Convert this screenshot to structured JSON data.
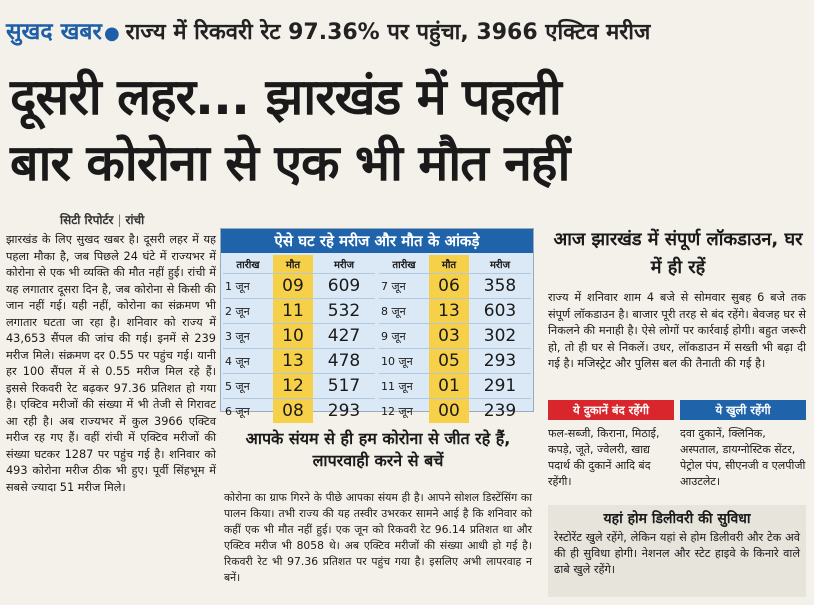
{
  "strap": {
    "tag": "सुखद खबर",
    "subtitle": "राज्य में रिकवरी रेट 97.36% पर पहुंचा, 3966 एक्टिव मरीज"
  },
  "headline": {
    "line1": "दूसरी लहर... झारखंड में पहली",
    "line2": "बार कोरोना से एक भी मौत नहीं"
  },
  "byline": {
    "reporter": "सिटी रिपोर्टर",
    "city": "रांची"
  },
  "left_article": "झारखंड के लिए सुखद खबर है। दूसरी लहर में यह पहला मौका है, जब पिछले 24 घंटे में राज्यभर में कोरोना से एक भी व्यक्ति की मौत नहीं हुई। रांची में यह लगातार दूसरा दिन है, जब कोरोना से किसी की जान नहीं गई। यही नहीं, कोरोना का संक्रमण भी लगातार घटता जा रहा है। शनिवार को राज्य में 43,653 सैंपल की जांच की गई। इनमें से 239 मरीज मिले। संक्रमण दर 0.55 पर पहुंच गई। यानी हर 100 सैंपल में से 0.55 मरीज मिल रहे हैं। इससे रिकवरी रेट बढ़कर 97.36 प्रतिशत हो गया है। एक्टिव मरीजों की संख्या में भी तेजी से गिरावट आ रही है। अब राज्यभर में कुल 3966 एक्टिव मरीज रह गए हैं। वहीं रांची में एक्टिव मरीजों की संख्या घटकर 1287 पर पहुंच गई है। शनिवार को 493 कोरोना मरीज ठीक भी हुए। पूर्वी सिंहभूम में सबसे ज्यादा 51 मरीज मिले।",
  "stats_table": {
    "title": "ऐसे घट रहे मरीज और मौत के आंकड़े",
    "headers": [
      "तारीख",
      "मौत",
      "मरीज"
    ],
    "left_rows": [
      {
        "date": "1 जून",
        "deaths": "09",
        "patients": "609"
      },
      {
        "date": "2 जून",
        "deaths": "11",
        "patients": "532"
      },
      {
        "date": "3 जून",
        "deaths": "10",
        "patients": "427"
      },
      {
        "date": "4 जून",
        "deaths": "13",
        "patients": "478"
      },
      {
        "date": "5 जून",
        "deaths": "12",
        "patients": "517"
      },
      {
        "date": "6 जून",
        "deaths": "08",
        "patients": "293"
      }
    ],
    "right_rows": [
      {
        "date": "7 जून",
        "deaths": "06",
        "patients": "358"
      },
      {
        "date": "8 जून",
        "deaths": "13",
        "patients": "603"
      },
      {
        "date": "9 जून",
        "deaths": "03",
        "patients": "302"
      },
      {
        "date": "10 जून",
        "deaths": "05",
        "patients": "293"
      },
      {
        "date": "11 जून",
        "deaths": "01",
        "patients": "291"
      },
      {
        "date": "12 जून",
        "deaths": "00",
        "patients": "239"
      }
    ]
  },
  "middle_article": {
    "heading": "आपके संयम से ही हम कोरोना से जीत रहे हैं, लापरवाही करने से बचें",
    "body": "कोरोना का ग्राफ गिरने के पीछे आपका संयम ही है। आपने सोशल डिस्टेंसिंग का पालन किया। तभी राज्य की यह तस्वीर उभरकर सामने आई है कि शनिवार को कहीं एक भी मौत नहीं हुई। एक जून को रिकवरी रेट 96.14 प्रतिशत था और एक्टिव मरीज भी 8058 थे। अब एक्टिव मरीजों की संख्या आधी हो गई है। रिकवरी रेट भी 97.36 प्रतिशत पर पहुंच गया है। इसलिए अभी लापरवाह न बनें।"
  },
  "right_article": {
    "heading": "आज झारखंड में संपूर्ण लॉकडाउन, घर में ही रहें",
    "body": "राज्य में शनिवार शाम 4 बजे से सोमवार सुबह 6 बजे तक संपूर्ण लॉकडाउन है। बाजार पूरी तरह से बंद रहेंगे। बेवजह घर से निकलने की मनाही है। ऐसे लोगों पर कार्रवाई होगी। बहुत जरूरी हो, तो ही घर से निकलें। उधर, लॉकडाउन में सख्ती भी बढ़ा दी गई है। मजिस्ट्रेट और पुलिस बल की तैनाती की गई है।",
    "closed_header": "ये दुकानें बंद रहेंगी",
    "closed_text": "फल-सब्जी, किराना, मिठाई, कपड़े, जूते, ज्वेलरी, खाद्य पदार्थ की दुकानें आदि बंद रहेंगी।",
    "open_header": "ये खुली रहेंगी",
    "open_text": "दवा दुकानें, क्लिनिक, अस्पताल, डायग्नोस्टिक सेंटर, पेट्रोल पंप, सीएनजी व एलपीजी आउटलेट।",
    "delivery_header": "यहां होम डिलीवरी की सुविधा",
    "delivery_text": "रेस्टोरेंट खुले रहेंगे, लेकिन यहां से होम डिलीवरी और टेक अवे की ही सुविधा होगी। नेशनल और स्टेट हाइवे के किनारे वाले ढाबे खुले रहेंगे।"
  },
  "colors": {
    "accent_blue": "#1f63ab",
    "closed_red": "#d9262c",
    "death_yellow": "#f7d04a",
    "table_bg": "#dbe8f5"
  }
}
